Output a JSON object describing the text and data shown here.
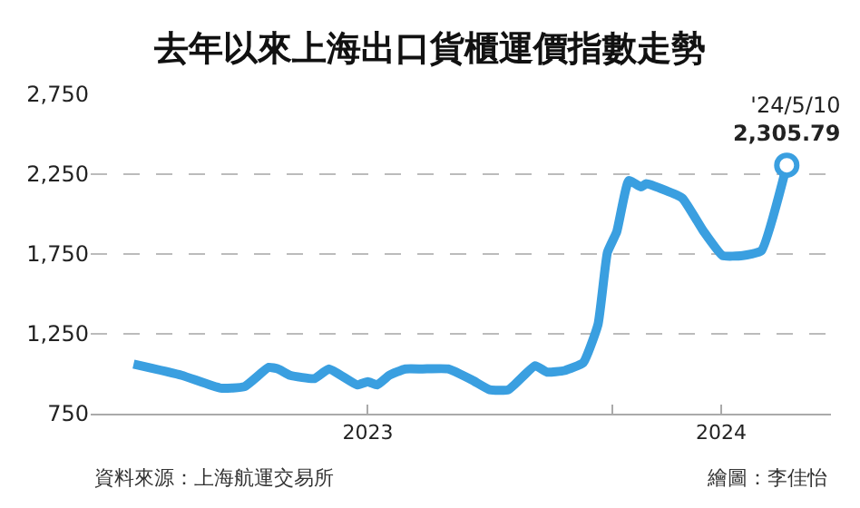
{
  "chart_data": {
    "type": "line",
    "title": "去年以來上海出口貨櫃運價指數走勢",
    "x": [
      "2023-01-08",
      "2023-02-13",
      "2023-03-14",
      "2023-04-01",
      "2023-04-19",
      "2023-04-26",
      "2023-05-05",
      "2023-05-23",
      "2023-06-03",
      "2023-06-24",
      "2023-07-02",
      "2023-07-09",
      "2023-07-18",
      "2023-07-30",
      "2023-08-12",
      "2023-08-31",
      "2023-09-18",
      "2023-10-01",
      "2023-10-15",
      "2023-11-04",
      "2023-11-13",
      "2023-11-26",
      "2023-12-10",
      "2023-12-21",
      "2023-12-28",
      "2024-01-04",
      "2024-01-13",
      "2024-01-22",
      "2024-01-26",
      "2024-02-09",
      "2024-02-22",
      "2024-03-09",
      "2024-03-23",
      "2024-04-07",
      "2024-04-21",
      "2024-05-10"
    ],
    "series": [
      {
        "color": "#3a9fe0",
        "values": [
          1060,
          990,
          910,
          920,
          1040,
          1030,
          990,
          970,
          1030,
          930,
          950,
          930,
          990,
          1030,
          1030,
          1030,
          960,
          900,
          900,
          1050,
          1010,
          1020,
          1070,
          1310,
          1760,
          1890,
          2210,
          2170,
          2190,
          2150,
          2100,
          1890,
          1740,
          1740,
          1770,
          2305.79
        ]
      }
    ],
    "xlim": [
      "2022-12-07",
      "2024-06-12"
    ],
    "xticks": [
      {
        "value": "2023-07-02",
        "label": "2023"
      },
      {
        "value": "2024-01-01",
        "label": null
      },
      {
        "value": "2024-03-22",
        "label": "2024"
      }
    ],
    "ylim": [
      750,
      2750
    ],
    "yticks": [
      {
        "value": 750,
        "label": "750"
      },
      {
        "value": 1250,
        "label": "1,250"
      },
      {
        "value": 1750,
        "label": "1,750"
      },
      {
        "value": 2250,
        "label": "2,250"
      },
      {
        "value": 2750,
        "label": "2,750"
      }
    ],
    "grid": "y",
    "marker": "none",
    "line_style": "solid",
    "annotations": [
      {
        "text": "'24/5/10\n2,305.79",
        "x": "2024-05-10",
        "y": 2305.79
      },
      "資料來源：上海航運交易所",
      "繪圖：李佳怡"
    ]
  }
}
